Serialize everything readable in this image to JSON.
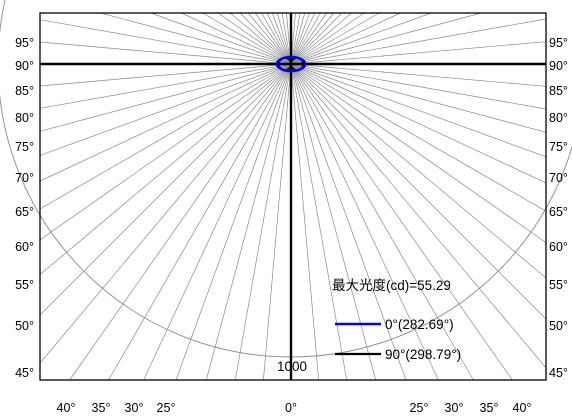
{
  "chart_data": {
    "type": "polar-isocandela",
    "title": "",
    "max_intensity_label": "最大光度(cd)=55.29",
    "radial_scale_label": "1000",
    "left_axis_labels": [
      "95°",
      "90°",
      "85°",
      "80°",
      "75°",
      "70°",
      "65°",
      "60°",
      "55°",
      "50°",
      "45°"
    ],
    "right_axis_labels": [
      "95°",
      "90°",
      "85°",
      "80°",
      "75°",
      "70°",
      "65°",
      "60°",
      "55°",
      "50°",
      "45°"
    ],
    "bottom_axis_labels_left": [
      "40°",
      "35°",
      "30°",
      "25°"
    ],
    "bottom_axis_center_label": "0°",
    "bottom_axis_labels_right": [
      "25°",
      "30°",
      "35°",
      "40°"
    ],
    "series": [
      {
        "name": "0°(282.69°)",
        "color": "#0000ff"
      },
      {
        "name": "90°(298.79°)",
        "color": "#000000"
      }
    ],
    "grid": true
  }
}
